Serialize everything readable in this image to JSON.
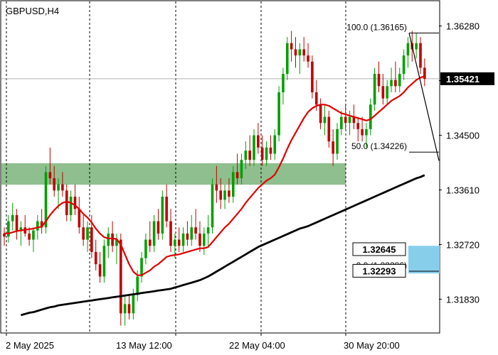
{
  "chart_data": {
    "type": "candlestick",
    "symbol_label": "GBPUSD,H4",
    "x_axis": {
      "tick_labels": [
        "2 May 2025",
        "13 May 12:00",
        "22 May 04:00",
        "30 May 20:00"
      ]
    },
    "y_axis": {
      "range": [
        1.3128,
        1.3668
      ],
      "tick_values": [
        1.3628,
        1.3539,
        1.345,
        1.3361,
        1.3272,
        1.3183
      ],
      "tick_labels": [
        "1.36280",
        "1.35390",
        "1.34500",
        "1.33610",
        "1.32720",
        "1.31830"
      ]
    },
    "current_price": {
      "value": 1.35421,
      "label": "1.35421"
    },
    "supply_demand_zone": {
      "price_top": 1.34045,
      "price_bottom": 1.33695,
      "color": "#8fbf8f"
    },
    "fibonacci": {
      "levels": [
        {
          "label": "100.0 (1.36165)",
          "value": 1.36165
        },
        {
          "label": "50.0 (1.34226)",
          "value": 1.34226
        },
        {
          "label": "0.0 (1.32286)",
          "value": 1.32286
        }
      ]
    },
    "price_boxes": [
      {
        "label": "1.32645",
        "value": 1.32645
      },
      {
        "label": "1.32293",
        "value": 1.32293
      }
    ],
    "target_zone": {
      "price_top": 1.327,
      "price_bottom": 1.3225,
      "color": "#87ceeb"
    },
    "series": [
      {
        "kind": "ohlc",
        "bull_color": "#00a000",
        "bear_color": "#c00000",
        "candles": [
          [
            1.329,
            1.33,
            1.327,
            1.3285
          ],
          [
            1.3285,
            1.332,
            1.3275,
            1.331
          ],
          [
            1.331,
            1.334,
            1.3295,
            1.332
          ],
          [
            1.332,
            1.333,
            1.328,
            1.3295
          ],
          [
            1.3295,
            1.331,
            1.327,
            1.33
          ],
          [
            1.33,
            1.332,
            1.3285,
            1.329
          ],
          [
            1.329,
            1.33,
            1.327,
            1.328
          ],
          [
            1.328,
            1.33,
            1.326,
            1.3295
          ],
          [
            1.3295,
            1.332,
            1.328,
            1.331
          ],
          [
            1.331,
            1.333,
            1.329,
            1.33
          ],
          [
            1.33,
            1.34,
            1.329,
            1.339
          ],
          [
            1.339,
            1.343,
            1.337,
            1.338
          ],
          [
            1.338,
            1.34,
            1.335,
            1.336
          ],
          [
            1.336,
            1.338,
            1.333,
            1.337
          ],
          [
            1.337,
            1.339,
            1.335,
            1.336
          ],
          [
            1.336,
            1.337,
            1.331,
            1.332
          ],
          [
            1.332,
            1.336,
            1.331,
            1.335
          ],
          [
            1.335,
            1.337,
            1.332,
            1.333
          ],
          [
            1.333,
            1.335,
            1.329,
            1.33
          ],
          [
            1.33,
            1.332,
            1.327,
            1.328
          ],
          [
            1.328,
            1.331,
            1.326,
            1.33
          ],
          [
            1.33,
            1.332,
            1.325,
            1.326
          ],
          [
            1.326,
            1.328,
            1.323,
            1.324
          ],
          [
            1.324,
            1.326,
            1.321,
            1.322
          ],
          [
            1.322,
            1.328,
            1.321,
            1.327
          ],
          [
            1.327,
            1.33,
            1.325,
            1.329
          ],
          [
            1.329,
            1.331,
            1.326,
            1.327
          ],
          [
            1.327,
            1.329,
            1.324,
            1.328
          ],
          [
            1.328,
            1.329,
            1.314,
            1.316
          ],
          [
            1.316,
            1.319,
            1.314,
            1.3175
          ],
          [
            1.3175,
            1.319,
            1.315,
            1.316
          ],
          [
            1.316,
            1.32,
            1.315,
            1.319
          ],
          [
            1.319,
            1.323,
            1.318,
            1.322
          ],
          [
            1.322,
            1.326,
            1.321,
            1.325
          ],
          [
            1.325,
            1.329,
            1.324,
            1.328
          ],
          [
            1.328,
            1.331,
            1.326,
            1.327
          ],
          [
            1.327,
            1.332,
            1.326,
            1.331
          ],
          [
            1.331,
            1.333,
            1.328,
            1.329
          ],
          [
            1.329,
            1.336,
            1.328,
            1.335
          ],
          [
            1.335,
            1.337,
            1.33,
            1.331
          ],
          [
            1.331,
            1.333,
            1.326,
            1.327
          ],
          [
            1.327,
            1.329,
            1.325,
            1.328
          ],
          [
            1.328,
            1.33,
            1.326,
            1.327
          ],
          [
            1.327,
            1.33,
            1.326,
            1.329
          ],
          [
            1.329,
            1.331,
            1.327,
            1.328
          ],
          [
            1.328,
            1.332,
            1.327,
            1.33
          ],
          [
            1.33,
            1.333,
            1.328,
            1.329
          ],
          [
            1.329,
            1.331,
            1.326,
            1.327
          ],
          [
            1.327,
            1.33,
            1.3255,
            1.329
          ],
          [
            1.329,
            1.332,
            1.327,
            1.33
          ],
          [
            1.33,
            1.338,
            1.329,
            1.337
          ],
          [
            1.337,
            1.34,
            1.334,
            1.336
          ],
          [
            1.336,
            1.338,
            1.333,
            1.3345
          ],
          [
            1.3345,
            1.337,
            1.333,
            1.336
          ],
          [
            1.336,
            1.338,
            1.334,
            1.335
          ],
          [
            1.335,
            1.34,
            1.334,
            1.339
          ],
          [
            1.339,
            1.342,
            1.337,
            1.338
          ],
          [
            1.338,
            1.342,
            1.337,
            1.341
          ],
          [
            1.341,
            1.344,
            1.3395,
            1.3425
          ],
          [
            1.3425,
            1.345,
            1.34,
            1.341
          ],
          [
            1.341,
            1.346,
            1.34,
            1.345
          ],
          [
            1.345,
            1.347,
            1.342,
            1.343
          ],
          [
            1.343,
            1.345,
            1.34,
            1.341
          ],
          [
            1.341,
            1.344,
            1.34,
            1.343
          ],
          [
            1.343,
            1.345,
            1.341,
            1.342
          ],
          [
            1.342,
            1.346,
            1.341,
            1.345
          ],
          [
            1.345,
            1.353,
            1.344,
            1.352
          ],
          [
            1.352,
            1.356,
            1.35,
            1.355
          ],
          [
            1.355,
            1.361,
            1.354,
            1.36
          ],
          [
            1.36,
            1.362,
            1.357,
            1.359
          ],
          [
            1.359,
            1.361,
            1.356,
            1.358
          ],
          [
            1.358,
            1.36,
            1.355,
            1.359
          ],
          [
            1.359,
            1.361,
            1.357,
            1.358
          ],
          [
            1.358,
            1.36,
            1.356,
            1.357
          ],
          [
            1.357,
            1.358,
            1.351,
            1.352
          ],
          [
            1.352,
            1.354,
            1.349,
            1.35
          ],
          [
            1.35,
            1.351,
            1.346,
            1.347
          ],
          [
            1.347,
            1.35,
            1.345,
            1.348
          ],
          [
            1.348,
            1.349,
            1.343,
            1.344
          ],
          [
            1.344,
            1.346,
            1.34,
            1.342
          ],
          [
            1.342,
            1.347,
            1.341,
            1.346
          ],
          [
            1.346,
            1.349,
            1.345,
            1.348
          ],
          [
            1.348,
            1.35,
            1.346,
            1.347
          ],
          [
            1.347,
            1.349,
            1.345,
            1.348
          ],
          [
            1.348,
            1.35,
            1.346,
            1.347
          ],
          [
            1.347,
            1.348,
            1.344,
            1.346
          ],
          [
            1.346,
            1.348,
            1.344,
            1.345
          ],
          [
            1.345,
            1.347,
            1.343,
            1.346
          ],
          [
            1.346,
            1.351,
            1.345,
            1.35
          ],
          [
            1.35,
            1.356,
            1.349,
            1.355
          ],
          [
            1.355,
            1.357,
            1.352,
            1.353
          ],
          [
            1.353,
            1.355,
            1.35,
            1.351
          ],
          [
            1.351,
            1.354,
            1.35,
            1.353
          ],
          [
            1.353,
            1.356,
            1.352,
            1.354
          ],
          [
            1.354,
            1.357,
            1.352,
            1.353
          ],
          [
            1.353,
            1.356,
            1.352,
            1.355
          ],
          [
            1.355,
            1.359,
            1.354,
            1.358
          ],
          [
            1.358,
            1.361,
            1.356,
            1.36
          ],
          [
            1.36,
            1.362,
            1.357,
            1.359
          ],
          [
            1.359,
            1.3617,
            1.3575,
            1.36
          ],
          [
            1.36,
            1.361,
            1.355,
            1.356
          ],
          [
            1.356,
            1.3575,
            1.353,
            1.3542
          ]
        ]
      },
      {
        "kind": "line",
        "color": "#e00000",
        "values": [
          1.329,
          1.329,
          1.3292,
          1.3294,
          1.3295,
          1.3296,
          1.3297,
          1.3298,
          1.33,
          1.3301,
          1.331,
          1.332,
          1.3328,
          1.3335,
          1.334,
          1.3342,
          1.334,
          1.3336,
          1.333,
          1.3322,
          1.3316,
          1.3308,
          1.3298,
          1.329,
          1.3284,
          1.3282,
          1.3282,
          1.3281,
          1.3272,
          1.3256,
          1.324,
          1.3228,
          1.3222,
          1.3222,
          1.3226,
          1.323,
          1.3236,
          1.324,
          1.3246,
          1.3252,
          1.3254,
          1.3255,
          1.3256,
          1.3258,
          1.326,
          1.3262,
          1.3264,
          1.3266,
          1.3266,
          1.3268,
          1.3276,
          1.3284,
          1.3292,
          1.33,
          1.3306,
          1.3314,
          1.3322,
          1.333,
          1.334,
          1.3348,
          1.3356,
          1.3364,
          1.337,
          1.3376,
          1.338,
          1.3386,
          1.3398,
          1.3412,
          1.3428,
          1.3442,
          1.3454,
          1.3466,
          1.3478,
          1.3488,
          1.3494,
          1.3498,
          1.35,
          1.35,
          1.3498,
          1.3494,
          1.349,
          1.3486,
          1.3484,
          1.3482,
          1.348,
          1.3478,
          1.3476,
          1.3474,
          1.3476,
          1.3482,
          1.3488,
          1.3494,
          1.35,
          1.3506,
          1.351,
          1.3514,
          1.352,
          1.3528,
          1.3534,
          1.354,
          1.3544,
          1.3546
        ]
      },
      {
        "kind": "line",
        "color": "#000000",
        "values": [
          1.315,
          1.3152,
          1.3154,
          1.3155,
          1.3157,
          1.3159,
          1.3161,
          1.3162,
          1.3164,
          1.3166,
          1.3168,
          1.317,
          1.3171,
          1.3173,
          1.3174,
          1.3175,
          1.3176,
          1.3177,
          1.3178,
          1.3179,
          1.318,
          1.3181,
          1.3182,
          1.3183,
          1.3184,
          1.3185,
          1.3186,
          1.3187,
          1.3188,
          1.3189,
          1.319,
          1.3191,
          1.3192,
          1.3193,
          1.3194,
          1.3195,
          1.3196,
          1.3197,
          1.3198,
          1.3199,
          1.32,
          1.3202,
          1.3204,
          1.3206,
          1.3208,
          1.321,
          1.3212,
          1.3214,
          1.3217,
          1.322,
          1.3224,
          1.3228,
          1.3232,
          1.3236,
          1.324,
          1.3244,
          1.3248,
          1.3252,
          1.3256,
          1.326,
          1.3264,
          1.3268,
          1.3271,
          1.3274,
          1.3277,
          1.328,
          1.3283,
          1.3286,
          1.3289,
          1.3292,
          1.3295,
          1.3298,
          1.33,
          1.3302,
          1.3305,
          1.3308,
          1.3311,
          1.3314,
          1.3317,
          1.332,
          1.3323,
          1.3326,
          1.3329,
          1.3332,
          1.3335,
          1.3338,
          1.3341,
          1.3344,
          1.3347,
          1.335,
          1.3353,
          1.3356,
          1.3359,
          1.3362,
          1.3365,
          1.3368,
          1.3371,
          1.3374,
          1.3377,
          1.338,
          1.3382,
          1.3385
        ]
      }
    ]
  }
}
